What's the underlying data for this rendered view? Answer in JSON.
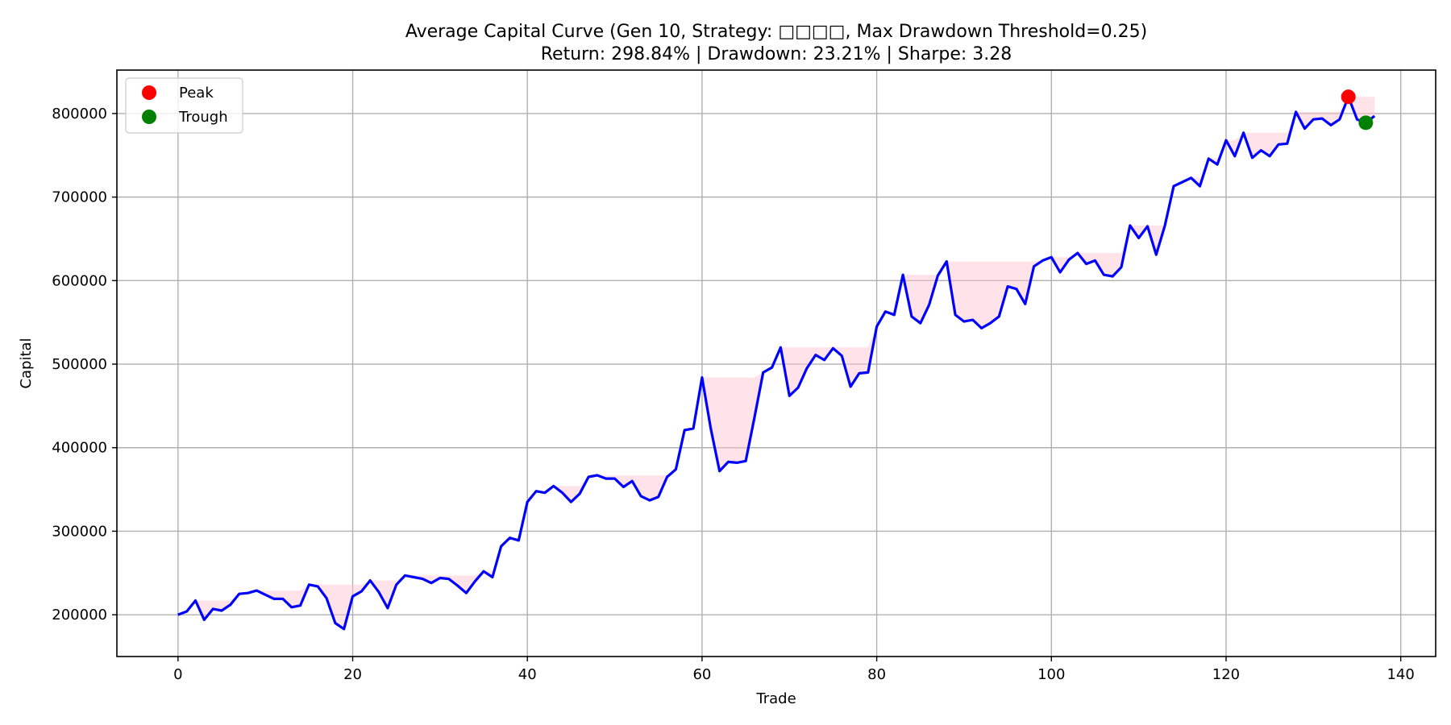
{
  "chart_data": {
    "type": "line",
    "title": "Average Capital Curve (Gen 10, Strategy: □□□□, Max Drawdown Threshold=0.25)",
    "subtitle": "Return: 298.84% | Drawdown: 23.21% | Sharpe: 3.28",
    "xlabel": "Trade",
    "ylabel": "Capital",
    "xlim": [
      -7,
      144
    ],
    "ylim": [
      150000,
      852000
    ],
    "xticks": [
      0,
      20,
      40,
      60,
      80,
      100,
      120,
      140
    ],
    "yticks": [
      200000,
      300000,
      400000,
      500000,
      600000,
      700000,
      800000
    ],
    "grid": true,
    "legend": {
      "position": "top-left",
      "entries": [
        "Peak",
        "Trough"
      ]
    },
    "colors": {
      "line": "#0000ff",
      "drawdown": "#ffc0cb",
      "peak": "#ff0000",
      "trough": "#008000"
    },
    "series": [
      {
        "name": "Capital",
        "x": [
          0,
          1,
          2,
          3,
          4,
          5,
          6,
          7,
          8,
          9,
          10,
          11,
          12,
          13,
          14,
          15,
          16,
          17,
          18,
          19,
          20,
          21,
          22,
          23,
          24,
          25,
          26,
          27,
          28,
          29,
          30,
          31,
          32,
          33,
          34,
          35,
          36,
          37,
          38,
          39,
          40,
          41,
          42,
          43,
          44,
          45,
          46,
          47,
          48,
          49,
          50,
          51,
          52,
          53,
          54,
          55,
          56,
          57,
          58,
          59,
          60,
          61,
          62,
          63,
          64,
          65,
          66,
          67,
          68,
          69,
          70,
          71,
          72,
          73,
          74,
          75,
          76,
          77,
          78,
          79,
          80,
          81,
          82,
          83,
          84,
          85,
          86,
          87,
          88,
          89,
          90,
          91,
          92,
          93,
          94,
          95,
          96,
          97,
          98,
          99,
          100,
          101,
          102,
          103,
          104,
          105,
          106,
          107,
          108,
          109,
          110,
          111,
          112,
          113,
          114,
          115,
          116,
          117,
          118,
          119,
          120,
          121,
          122,
          123,
          124,
          125,
          126,
          127,
          128,
          129,
          130,
          131,
          132,
          133,
          134,
          135,
          136,
          137
        ],
        "values": [
          200000,
          204000,
          217000,
          194000,
          207000,
          205000,
          212000,
          225000,
          226000,
          229000,
          224000,
          219000,
          219000,
          209000,
          211000,
          236000,
          234000,
          220000,
          190000,
          183000,
          222000,
          228000,
          241000,
          227000,
          208000,
          236000,
          247000,
          245000,
          243000,
          238000,
          244000,
          243000,
          235000,
          226000,
          240000,
          252000,
          245000,
          282000,
          292000,
          289000,
          335000,
          348000,
          346000,
          354000,
          346000,
          335000,
          345000,
          365000,
          367000,
          363000,
          363000,
          353000,
          360000,
          342000,
          337000,
          341000,
          365000,
          374000,
          421000,
          423000,
          484000,
          423000,
          372000,
          383000,
          382000,
          384000,
          436000,
          490000,
          496000,
          520000,
          462000,
          472000,
          495000,
          511000,
          505000,
          519000,
          510000,
          473000,
          489000,
          490000,
          545000,
          563000,
          559000,
          607000,
          557000,
          549000,
          571000,
          606000,
          623000,
          559000,
          551000,
          553000,
          543000,
          549000,
          557000,
          593000,
          590000,
          572000,
          617000,
          624000,
          628000,
          610000,
          625000,
          633000,
          620000,
          624000,
          607000,
          605000,
          616000,
          666000,
          651000,
          665000,
          631000,
          666000,
          713000,
          718000,
          723000,
          713000,
          746000,
          739000,
          768000,
          749000,
          777000,
          747000,
          756000,
          749000,
          763000,
          764000,
          802000,
          782000,
          793000,
          794000,
          786000,
          793000,
          820000,
          793000,
          789000,
          797000
        ]
      }
    ],
    "peak": {
      "x": 134,
      "y": 820000,
      "label": "Peak"
    },
    "trough": {
      "x": 136,
      "y": 789000,
      "label": "Trough"
    }
  }
}
